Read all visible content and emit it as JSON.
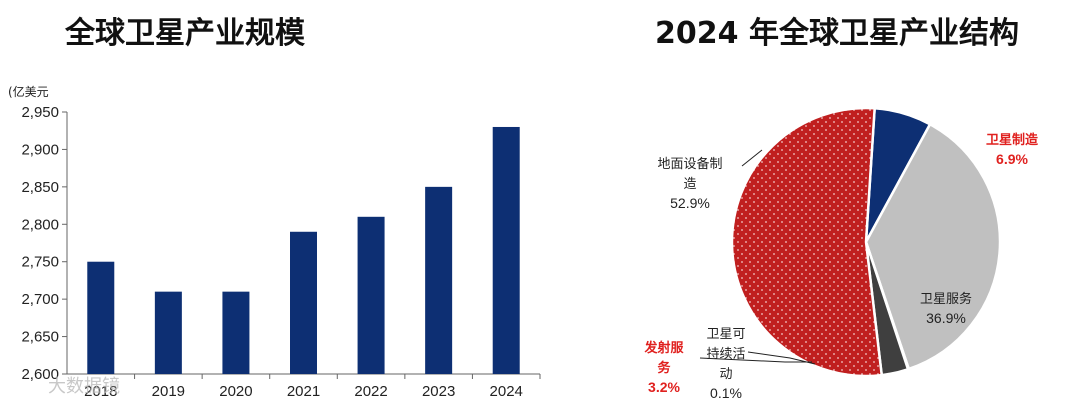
{
  "chart_data": [
    {
      "type": "bar",
      "title": "全球卫星产业规模",
      "ylabel": "(亿美元",
      "categories": [
        "2018",
        "2019",
        "2020",
        "2021",
        "2022",
        "2023",
        "2024"
      ],
      "values": [
        2750,
        2710,
        2710,
        2790,
        2810,
        2850,
        2930
      ],
      "ylim": [
        2600,
        2950
      ],
      "yticks": [
        "2,600",
        "2,650",
        "2,700",
        "2,750",
        "2,800",
        "2,850",
        "2,900",
        "2,950"
      ],
      "color": "#0d2f73",
      "grid": false
    },
    {
      "type": "pie",
      "title": "2024 年全球卫星产业结构",
      "slices": [
        {
          "label": "卫星制造",
          "value": 6.9,
          "value_label": "6.9%",
          "color": "#0d2f73",
          "highlight": true
        },
        {
          "label": "卫星服务",
          "value": 36.9,
          "value_label": "36.9%",
          "color": "#c0c0c0",
          "highlight": false
        },
        {
          "label": "卫星可持续活动",
          "value": 0.1,
          "value_label": "0.1%",
          "color": "#ffffff",
          "highlight": false
        },
        {
          "label": "发射服务",
          "value": 3.2,
          "value_label": "3.2%",
          "color": "#3f3f3f",
          "highlight": true
        },
        {
          "label": "地面设备制造",
          "value": 52.9,
          "value_label": "52.9%",
          "color": "#c01f1f",
          "highlight": false
        }
      ]
    }
  ],
  "watermark": "大数据镜"
}
